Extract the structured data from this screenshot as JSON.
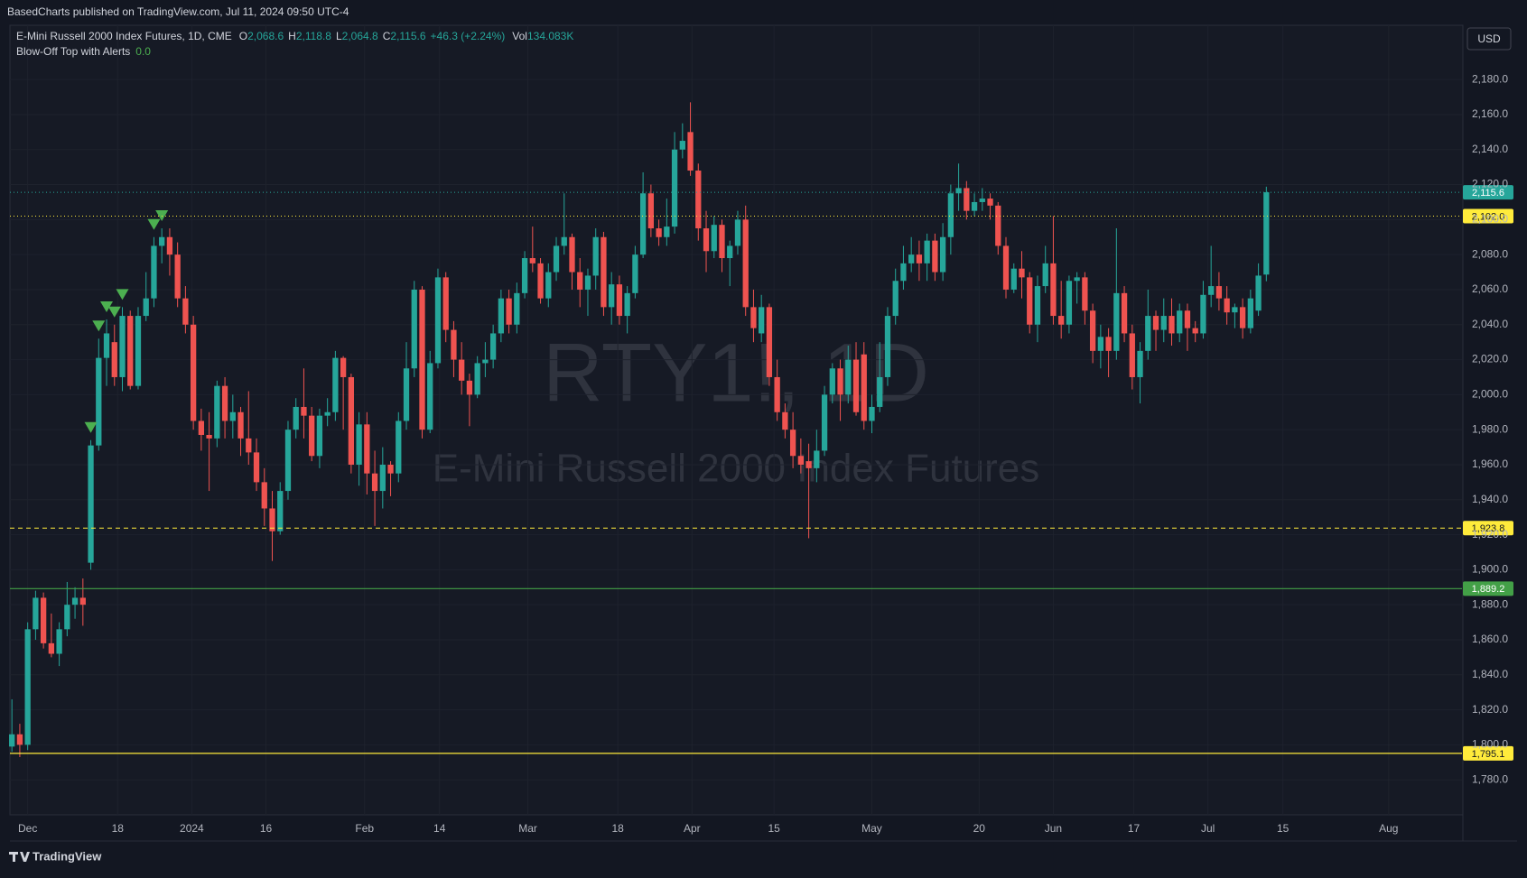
{
  "header": {
    "published": "BasedCharts published on TradingView.com, Jul 11, 2024 09:50 UTC-4",
    "symbol": "E-Mini Russell 2000 Index Futures, 1D, CME",
    "ohlc": [
      {
        "name": "O",
        "value": "2,068.6"
      },
      {
        "name": "H",
        "value": "2,118.8"
      },
      {
        "name": "L",
        "value": "2,064.8"
      },
      {
        "name": "C",
        "value": "2,115.6"
      }
    ],
    "change": "+46.3 (+2.24%)",
    "volume_name": "Vol",
    "volume": "134.083K",
    "indicator": "Blow-Off Top with Alerts",
    "indicator_value": "0.0",
    "currency": "USD"
  },
  "chart_data": {
    "type": "candlestick",
    "watermark": [
      "RTY1!, 1D",
      "E-Mini Russell 2000 Index Futures"
    ],
    "up_color": "#26a69a",
    "down_color": "#ef5350",
    "signal_color": "#4caf50",
    "ylim": [
      1760,
      2211
    ],
    "xlim": [
      -0.25,
      183.8
    ],
    "yticks": [
      {
        "value": 1780,
        "label": "1,780.0"
      },
      {
        "value": 1800,
        "label": "1,800.0"
      },
      {
        "value": 1820,
        "label": "1,820.0"
      },
      {
        "value": 1840,
        "label": "1,840.0"
      },
      {
        "value": 1860,
        "label": "1,860.0"
      },
      {
        "value": 1880,
        "label": "1,880.0"
      },
      {
        "value": 1900,
        "label": "1,900.0"
      },
      {
        "value": 1920,
        "label": "1,920.0"
      },
      {
        "value": 1940,
        "label": "1,940.0"
      },
      {
        "value": 1960,
        "label": "1,960.0"
      },
      {
        "value": 1980,
        "label": "1,980.0"
      },
      {
        "value": 2000,
        "label": "2,000.0"
      },
      {
        "value": 2020,
        "label": "2,020.0"
      },
      {
        "value": 2040,
        "label": "2,040.0"
      },
      {
        "value": 2060,
        "label": "2,060.0"
      },
      {
        "value": 2080,
        "label": "2,080.0"
      },
      {
        "value": 2100,
        "label": "2,100.0"
      },
      {
        "value": 2120,
        "label": "2,120.0"
      },
      {
        "value": 2140,
        "label": "2,140.0"
      },
      {
        "value": 2160,
        "label": "2,160.0"
      },
      {
        "value": 2180,
        "label": "2,180.0"
      }
    ],
    "xticks": [
      {
        "value": 2.0,
        "label": "Dec"
      },
      {
        "value": 13.4,
        "label": "18"
      },
      {
        "value": 22.8,
        "label": "2024"
      },
      {
        "value": 32.2,
        "label": "16"
      },
      {
        "value": 44.7,
        "label": "Feb"
      },
      {
        "value": 54.2,
        "label": "14"
      },
      {
        "value": 65.4,
        "label": "Mar"
      },
      {
        "value": 76.8,
        "label": "18"
      },
      {
        "value": 86.2,
        "label": "Apr"
      },
      {
        "value": 96.6,
        "label": "15"
      },
      {
        "value": 109,
        "label": "May"
      },
      {
        "value": 122.6,
        "label": "20"
      },
      {
        "value": 132,
        "label": "Jun"
      },
      {
        "value": 142.2,
        "label": "17"
      },
      {
        "value": 151.6,
        "label": "Jul"
      },
      {
        "value": 161.1,
        "label": "15"
      },
      {
        "value": 174.5,
        "label": "Aug"
      }
    ],
    "price_lines": [
      {
        "value": 2115.6,
        "label": "2,115.6",
        "color": "#26a69a",
        "style": "dotted"
      },
      {
        "value": 2102.0,
        "label": "2,102.0",
        "color": "#ffeb3b",
        "style": "dotted"
      },
      {
        "value": 1923.8,
        "label": "1,923.8",
        "color": "#ffeb3b",
        "style": "dashed"
      },
      {
        "value": 1889.2,
        "label": "1,889.2",
        "color": "#43a047",
        "style": "solid"
      },
      {
        "value": 1795.1,
        "label": "1,795.1",
        "color": "#ffeb3b",
        "style": "solid"
      }
    ],
    "signal_bars": [
      10,
      11,
      12,
      13,
      14,
      18,
      19
    ],
    "candles": [
      [
        1799,
        1826,
        1796,
        1806
      ],
      [
        1806,
        1812,
        1793,
        1800
      ],
      [
        1800,
        1870,
        1797,
        1866
      ],
      [
        1866,
        1888,
        1860,
        1884
      ],
      [
        1884,
        1887,
        1855,
        1858
      ],
      [
        1858,
        1875,
        1850,
        1852
      ],
      [
        1852,
        1870,
        1845,
        1866
      ],
      [
        1866,
        1893,
        1862,
        1880
      ],
      [
        1880,
        1890,
        1872,
        1884
      ],
      [
        1884,
        1895,
        1868,
        1880
      ],
      [
        1904,
        1974,
        1900,
        1971
      ],
      [
        1971,
        2032,
        1968,
        2021
      ],
      [
        2021,
        2043,
        2005,
        2035
      ],
      [
        2030,
        2040,
        2005,
        2010
      ],
      [
        2010,
        2050,
        2002,
        2045
      ],
      [
        2045,
        2048,
        2003,
        2005
      ],
      [
        2005,
        2050,
        2003,
        2045
      ],
      [
        2045,
        2070,
        2042,
        2055
      ],
      [
        2055,
        2090,
        2050,
        2085
      ],
      [
        2085,
        2095,
        2075,
        2090
      ],
      [
        2090,
        2095,
        2068,
        2080
      ],
      [
        2080,
        2087,
        2050,
        2055
      ],
      [
        2055,
        2062,
        2035,
        2040
      ],
      [
        2040,
        2045,
        1980,
        1985
      ],
      [
        1985,
        1992,
        1968,
        1977
      ],
      [
        1977,
        1990,
        1945,
        1975
      ],
      [
        1975,
        2008,
        1970,
        2005
      ],
      [
        2005,
        2010,
        1975,
        1985
      ],
      [
        1985,
        2000,
        1975,
        1990
      ],
      [
        1990,
        1993,
        1965,
        1975
      ],
      [
        1975,
        2002,
        1960,
        1967
      ],
      [
        1967,
        1975,
        1945,
        1950
      ],
      [
        1950,
        1958,
        1925,
        1935
      ],
      [
        1935,
        1945,
        1905,
        1922
      ],
      [
        1922,
        1950,
        1920,
        1945
      ],
      [
        1945,
        1985,
        1940,
        1980
      ],
      [
        1980,
        1998,
        1975,
        1993
      ],
      [
        1993,
        2015,
        1975,
        1988
      ],
      [
        1988,
        1993,
        1962,
        1965
      ],
      [
        1965,
        1992,
        1958,
        1988
      ],
      [
        1988,
        1998,
        1982,
        1990
      ],
      [
        1990,
        2025,
        1985,
        2021
      ],
      [
        2021,
        2022,
        1980,
        2010
      ],
      [
        2010,
        2012,
        1955,
        1960
      ],
      [
        1960,
        1990,
        1948,
        1983
      ],
      [
        1983,
        1990,
        1943,
        1955
      ],
      [
        1955,
        1968,
        1925,
        1945
      ],
      [
        1945,
        1970,
        1935,
        1960
      ],
      [
        1960,
        1962,
        1942,
        1955
      ],
      [
        1955,
        1990,
        1950,
        1985
      ],
      [
        1985,
        2030,
        1980,
        2015
      ],
      [
        2015,
        2065,
        2010,
        2060
      ],
      [
        2060,
        2062,
        1975,
        1980
      ],
      [
        1980,
        2025,
        1978,
        2018
      ],
      [
        2018,
        2072,
        2015,
        2067
      ],
      [
        2067,
        2070,
        2030,
        2037
      ],
      [
        2037,
        2042,
        2010,
        2020
      ],
      [
        2020,
        2030,
        2000,
        2008
      ],
      [
        2008,
        2012,
        1982,
        2000
      ],
      [
        2000,
        2022,
        1998,
        2018
      ],
      [
        2018,
        2030,
        2010,
        2020
      ],
      [
        2020,
        2040,
        2015,
        2035
      ],
      [
        2035,
        2060,
        2030,
        2055
      ],
      [
        2055,
        2060,
        2035,
        2040
      ],
      [
        2040,
        2064,
        2035,
        2058
      ],
      [
        2058,
        2082,
        2055,
        2078
      ],
      [
        2078,
        2096,
        2070,
        2075
      ],
      [
        2075,
        2078,
        2052,
        2055
      ],
      [
        2055,
        2075,
        2050,
        2070
      ],
      [
        2070,
        2090,
        2065,
        2085
      ],
      [
        2085,
        2115,
        2080,
        2090
      ],
      [
        2090,
        2092,
        2060,
        2070
      ],
      [
        2070,
        2078,
        2050,
        2060
      ],
      [
        2060,
        2072,
        2045,
        2068
      ],
      [
        2068,
        2095,
        2060,
        2090
      ],
      [
        2090,
        2093,
        2045,
        2050
      ],
      [
        2050,
        2070,
        2040,
        2063
      ],
      [
        2063,
        2068,
        2040,
        2045
      ],
      [
        2045,
        2062,
        2035,
        2058
      ],
      [
        2058,
        2085,
        2055,
        2080
      ],
      [
        2080,
        2127,
        2078,
        2115
      ],
      [
        2115,
        2120,
        2090,
        2095
      ],
      [
        2095,
        2100,
        2085,
        2090
      ],
      [
        2090,
        2112,
        2085,
        2096
      ],
      [
        2096,
        2150,
        2092,
        2140
      ],
      [
        2140,
        2155,
        2135,
        2145
      ],
      [
        2150,
        2167,
        2125,
        2128
      ],
      [
        2128,
        2132,
        2088,
        2095
      ],
      [
        2095,
        2105,
        2070,
        2082
      ],
      [
        2082,
        2102,
        2078,
        2097
      ],
      [
        2097,
        2100,
        2070,
        2078
      ],
      [
        2078,
        2088,
        2062,
        2085
      ],
      [
        2085,
        2105,
        2080,
        2100
      ],
      [
        2100,
        2108,
        2045,
        2050
      ],
      [
        2050,
        2060,
        2030,
        2038
      ],
      [
        2035,
        2057,
        2030,
        2050
      ],
      [
        2050,
        2052,
        2005,
        2010
      ],
      [
        2010,
        2020,
        1985,
        1990
      ],
      [
        1990,
        1995,
        1975,
        1980
      ],
      [
        1980,
        1990,
        1958,
        1965
      ],
      [
        1965,
        1975,
        1955,
        1960
      ],
      [
        1962,
        1972,
        1918,
        1958
      ],
      [
        1958,
        1980,
        1950,
        1968
      ],
      [
        1968,
        2005,
        1965,
        2000
      ],
      [
        2000,
        2018,
        1995,
        2015
      ],
      [
        2015,
        2020,
        1985,
        2000
      ],
      [
        2000,
        2028,
        1995,
        2020
      ],
      [
        2020,
        2030,
        1988,
        1990
      ],
      [
        2023,
        2030,
        1980,
        1985
      ],
      [
        1985,
        2000,
        1978,
        1993
      ],
      [
        1993,
        2030,
        1990,
        2010
      ],
      [
        2010,
        2050,
        2005,
        2045
      ],
      [
        2045,
        2072,
        2040,
        2065
      ],
      [
        2065,
        2085,
        2060,
        2075
      ],
      [
        2075,
        2090,
        2070,
        2080
      ],
      [
        2080,
        2088,
        2065,
        2075
      ],
      [
        2075,
        2092,
        2065,
        2088
      ],
      [
        2088,
        2092,
        2065,
        2070
      ],
      [
        2070,
        2098,
        2065,
        2090
      ],
      [
        2090,
        2120,
        2080,
        2115
      ],
      [
        2115,
        2132,
        2105,
        2118
      ],
      [
        2118,
        2122,
        2100,
        2105
      ],
      [
        2105,
        2115,
        2102,
        2110
      ],
      [
        2110,
        2118,
        2105,
        2112
      ],
      [
        2112,
        2115,
        2100,
        2108
      ],
      [
        2108,
        2110,
        2080,
        2085
      ],
      [
        2085,
        2090,
        2055,
        2060
      ],
      [
        2060,
        2075,
        2058,
        2072
      ],
      [
        2072,
        2082,
        2055,
        2067
      ],
      [
        2067,
        2070,
        2035,
        2040
      ],
      [
        2040,
        2068,
        2030,
        2062
      ],
      [
        2062,
        2085,
        2058,
        2075
      ],
      [
        2075,
        2102,
        2040,
        2045
      ],
      [
        2045,
        2065,
        2032,
        2040
      ],
      [
        2040,
        2068,
        2035,
        2065
      ],
      [
        2065,
        2070,
        2052,
        2067
      ],
      [
        2067,
        2070,
        2040,
        2048
      ],
      [
        2048,
        2052,
        2018,
        2025
      ],
      [
        2025,
        2040,
        2015,
        2033
      ],
      [
        2033,
        2038,
        2010,
        2025
      ],
      [
        2025,
        2095,
        2020,
        2058
      ],
      [
        2058,
        2062,
        2030,
        2035
      ],
      [
        2035,
        2040,
        2003,
        2010
      ],
      [
        2010,
        2030,
        1995,
        2025
      ],
      [
        2025,
        2060,
        2020,
        2045
      ],
      [
        2045,
        2048,
        2025,
        2037
      ],
      [
        2037,
        2055,
        2030,
        2045
      ],
      [
        2045,
        2055,
        2028,
        2035
      ],
      [
        2035,
        2052,
        2030,
        2048
      ],
      [
        2048,
        2052,
        2025,
        2038
      ],
      [
        2038,
        2042,
        2030,
        2035
      ],
      [
        2035,
        2065,
        2032,
        2057
      ],
      [
        2057,
        2085,
        2050,
        2062
      ],
      [
        2062,
        2070,
        2048,
        2055
      ],
      [
        2055,
        2062,
        2040,
        2047
      ],
      [
        2047,
        2052,
        2038,
        2050
      ],
      [
        2050,
        2055,
        2032,
        2038
      ],
      [
        2038,
        2060,
        2035,
        2055
      ],
      [
        2048,
        2075,
        2045,
        2068
      ],
      [
        2068.6,
        2118.8,
        2064.8,
        2115.6
      ]
    ]
  },
  "footer": {
    "brand": "TradingView"
  }
}
